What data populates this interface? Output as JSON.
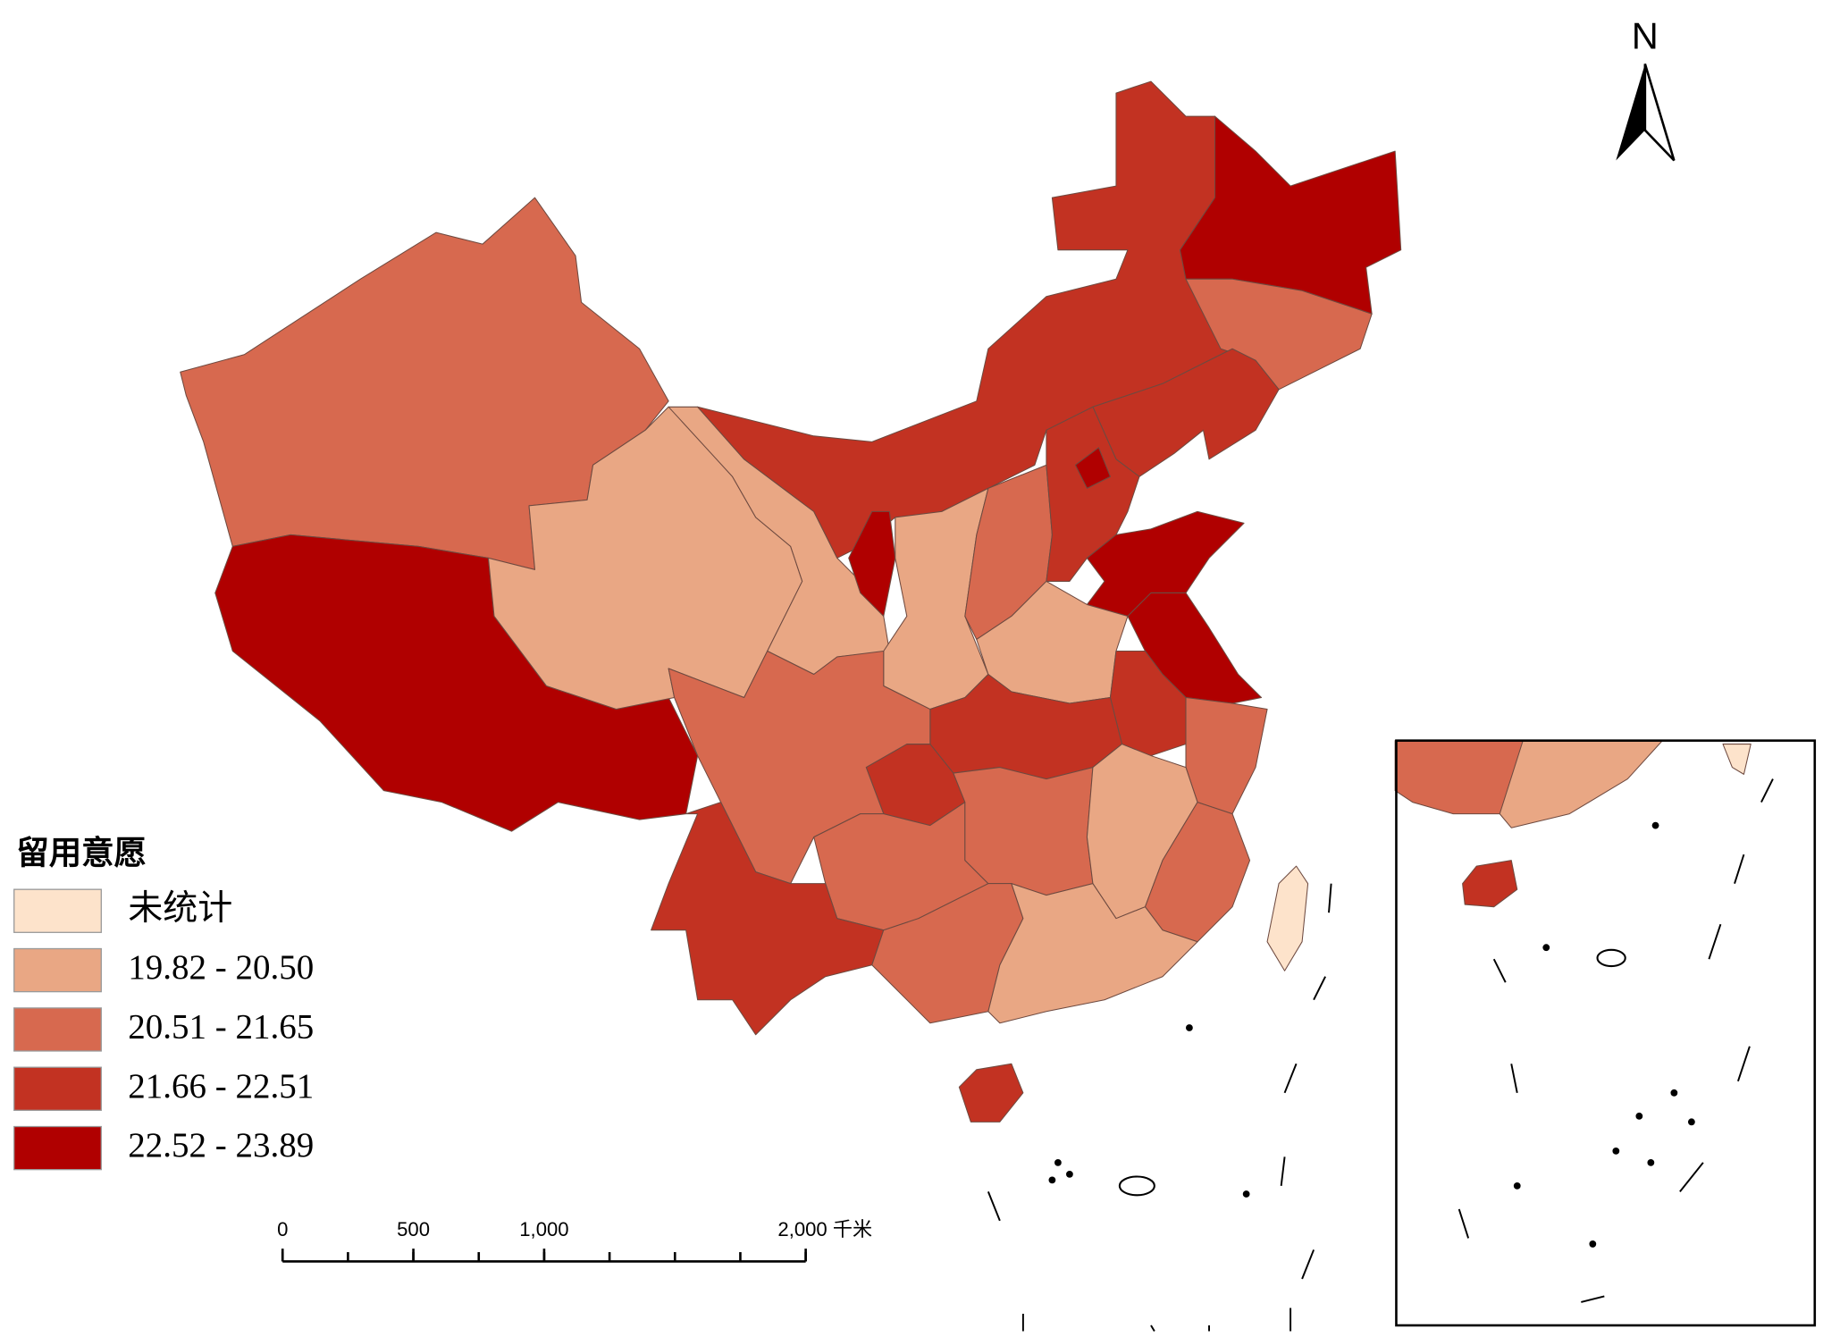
{
  "legend": {
    "title": "留用意愿",
    "items": [
      {
        "label": "未统计",
        "color": "#fde3cb"
      },
      {
        "label": "19.82 - 20.50",
        "color": "#e9a784"
      },
      {
        "label": "20.51 - 21.65",
        "color": "#d7694f"
      },
      {
        "label": "21.66 - 22.51",
        "color": "#c23222"
      },
      {
        "label": "22.52 - 23.89",
        "color": "#b00000"
      }
    ]
  },
  "north_arrow": {
    "label": "N"
  },
  "scale_bar": {
    "ticks": [
      0,
      500,
      {
        "value": 1000,
        "label": "1,000"
      },
      {
        "value": 2000,
        "label": "2,000 千米"
      }
    ]
  }
}
